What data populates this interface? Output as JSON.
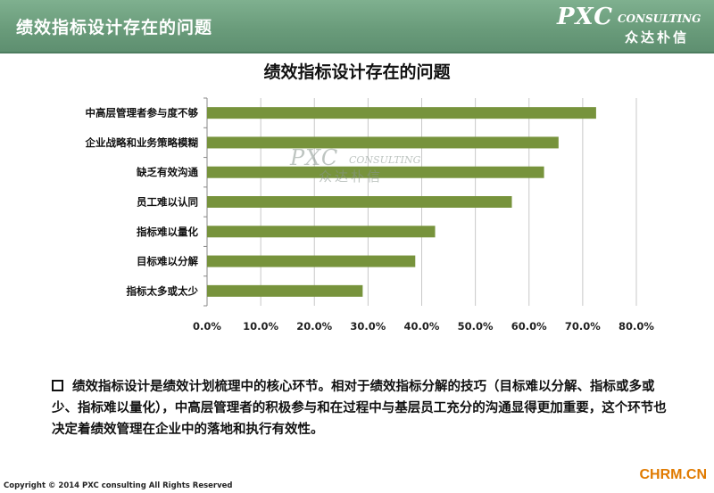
{
  "header": {
    "title": "绩效指标设计存在的问题",
    "logo_main": "PXC",
    "logo_sub": "CONSULTING",
    "logo_cn": "众达朴信"
  },
  "watermark": {
    "main": "PXC",
    "sub": "CONSULTING",
    "cn": "众达朴信"
  },
  "chart_data": {
    "type": "bar",
    "orientation": "horizontal",
    "title": "绩效指标设计存在的问题",
    "categories": [
      "中高层管理者参与度不够",
      "企业战略和业务策略模糊",
      "缺乏有效沟通",
      "员工难以认同",
      "指标难以量化",
      "目标难以分解",
      "指标太多或太少"
    ],
    "values": [
      72.5,
      65.5,
      62.8,
      56.8,
      42.5,
      38.8,
      29.0
    ],
    "xlim": [
      0,
      80
    ],
    "xticks": [
      "0.0%",
      "10.0%",
      "20.0%",
      "30.0%",
      "40.0%",
      "50.0%",
      "60.0%",
      "70.0%",
      "80.0%"
    ],
    "grid": true,
    "bar_color": "#77933c"
  },
  "note": {
    "text": "绩效指标设计是绩效计划梳理中的核心环节。相对于绩效指标分解的技巧（目标难以分解、指标或多或少、指标难以量化），中高层管理者的积极参与和在过程中与基层员工充分的沟通显得更加重要，这个环节也决定着绩效管理在企业中的落地和执行有效性。"
  },
  "footer": {
    "copyright": "Copyright © 2014  PXC consulting All Rights Reserved",
    "site": "CHRM.CN"
  }
}
